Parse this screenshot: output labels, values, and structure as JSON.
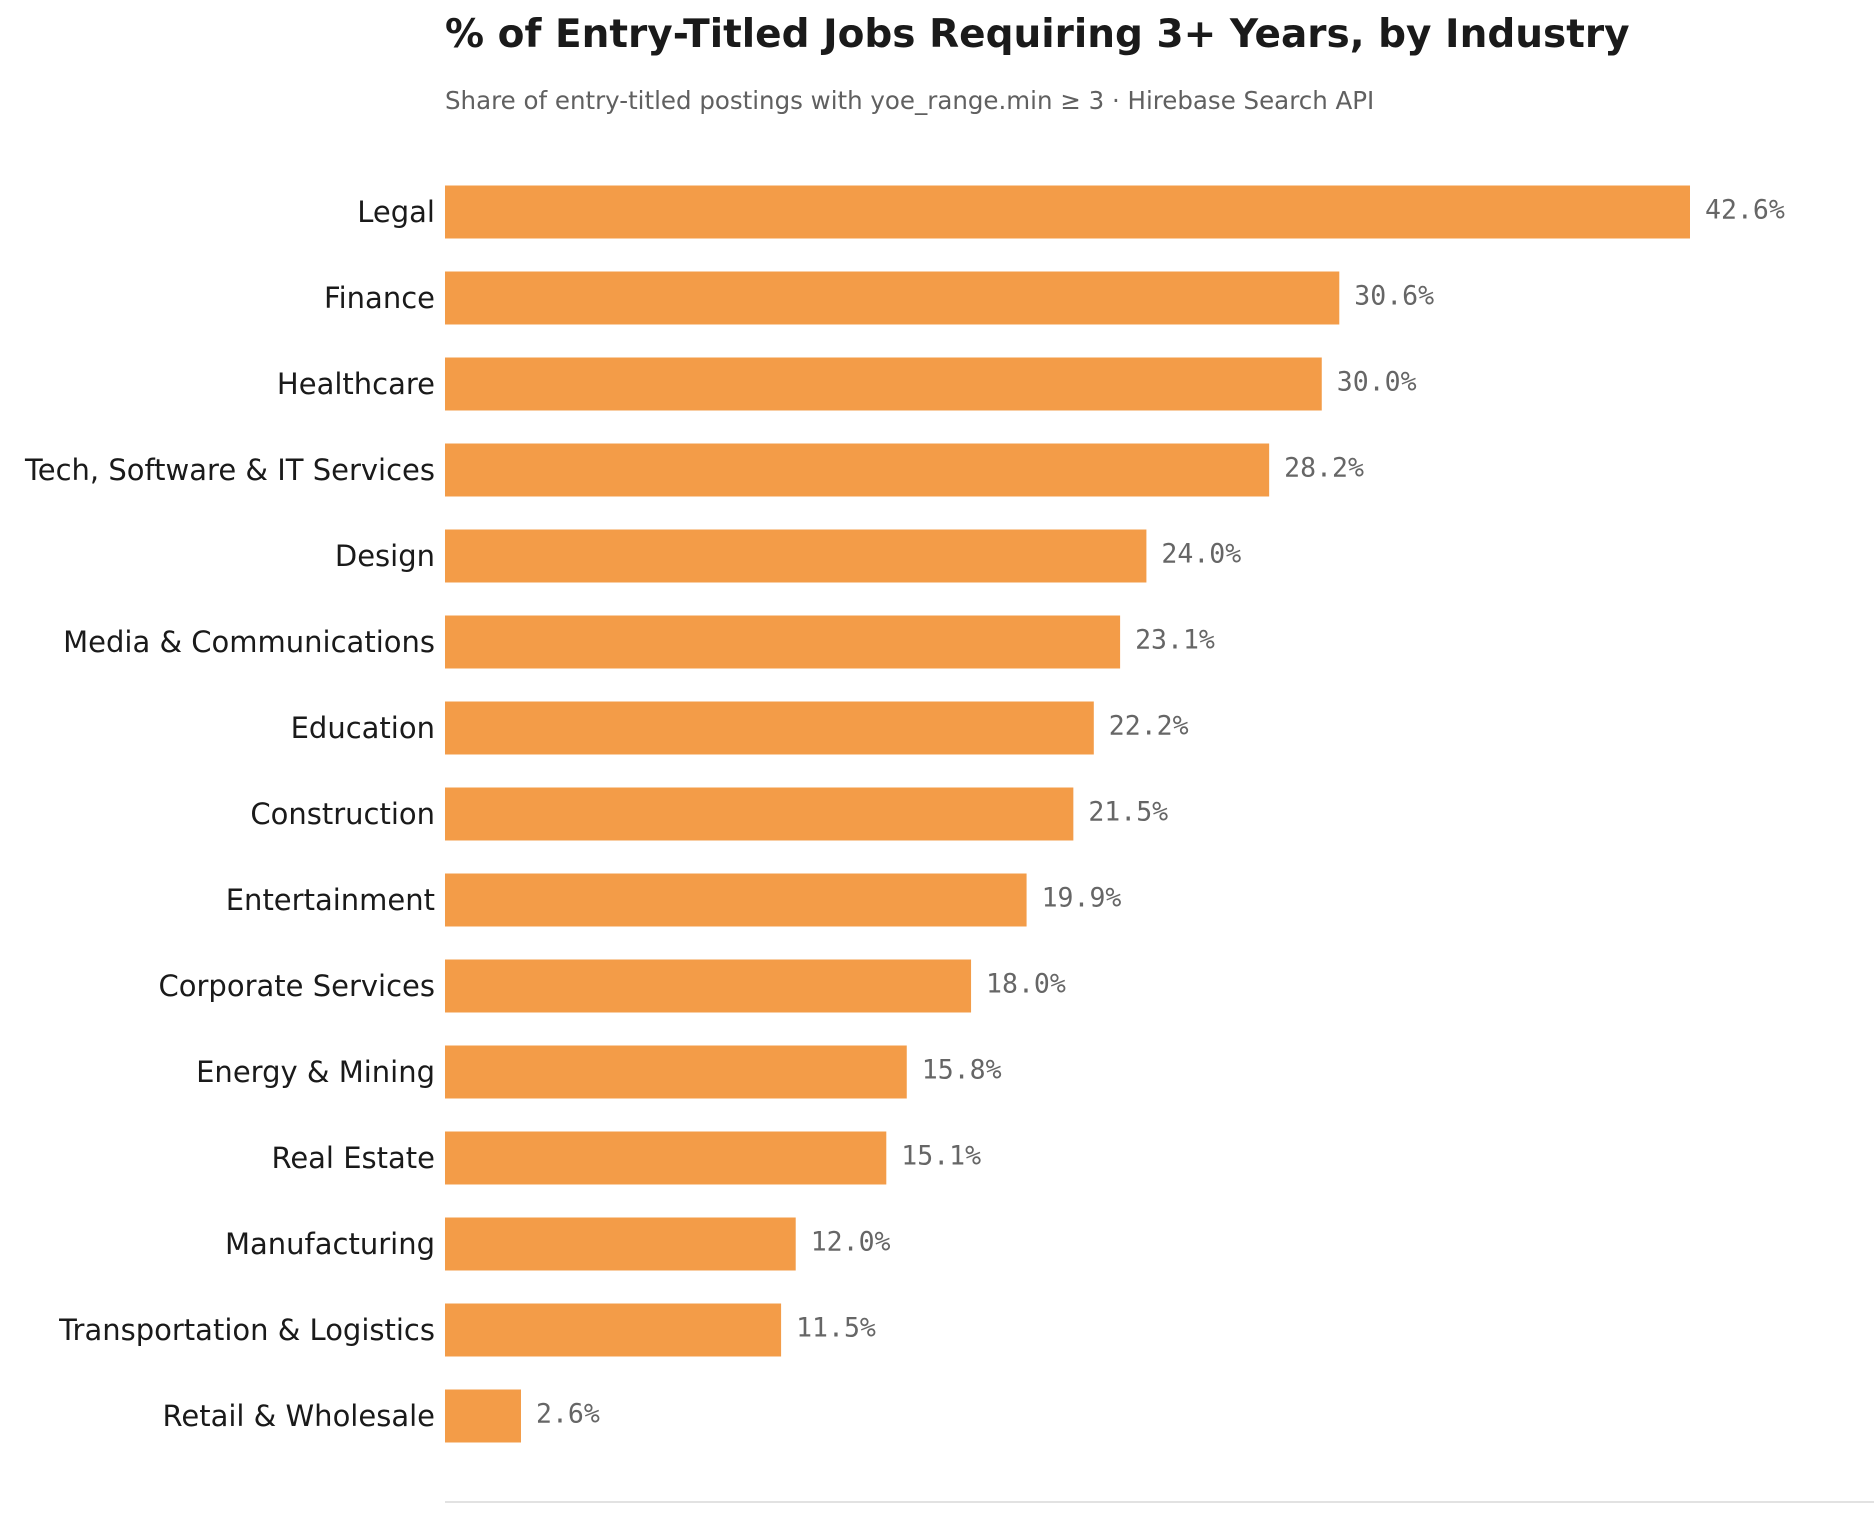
{
  "chart_data": {
    "type": "bar",
    "orientation": "horizontal",
    "title": "% of Entry-Titled Jobs Requiring 3+ Years, by Industry",
    "subtitle": "Share of entry-titled postings with yoe_range.min ≥ 3 · Hirebase Search API",
    "xlabel": "",
    "ylabel": "",
    "xlim": [
      0,
      50
    ],
    "grid": false,
    "bar_color": "#F39C48",
    "categories": [
      "Legal",
      "Finance",
      "Healthcare",
      "Tech, Software & IT Services",
      "Design",
      "Media & Communications",
      "Education",
      "Construction",
      "Entertainment",
      "Corporate Services",
      "Energy & Mining",
      "Real Estate",
      "Manufacturing",
      "Transportation & Logistics",
      "Retail & Wholesale"
    ],
    "values": [
      42.6,
      30.6,
      30.0,
      28.2,
      24.0,
      23.1,
      22.2,
      21.5,
      19.9,
      18.0,
      15.8,
      15.1,
      12.0,
      11.5,
      2.6
    ],
    "data_labels": [
      "42.6%",
      "30.6%",
      "30.0%",
      "28.2%",
      "24.0%",
      "23.1%",
      "22.2%",
      "21.5%",
      "19.9%",
      "18.0%",
      "15.8%",
      "15.1%",
      "12.0%",
      "11.5%",
      "2.6%"
    ]
  }
}
